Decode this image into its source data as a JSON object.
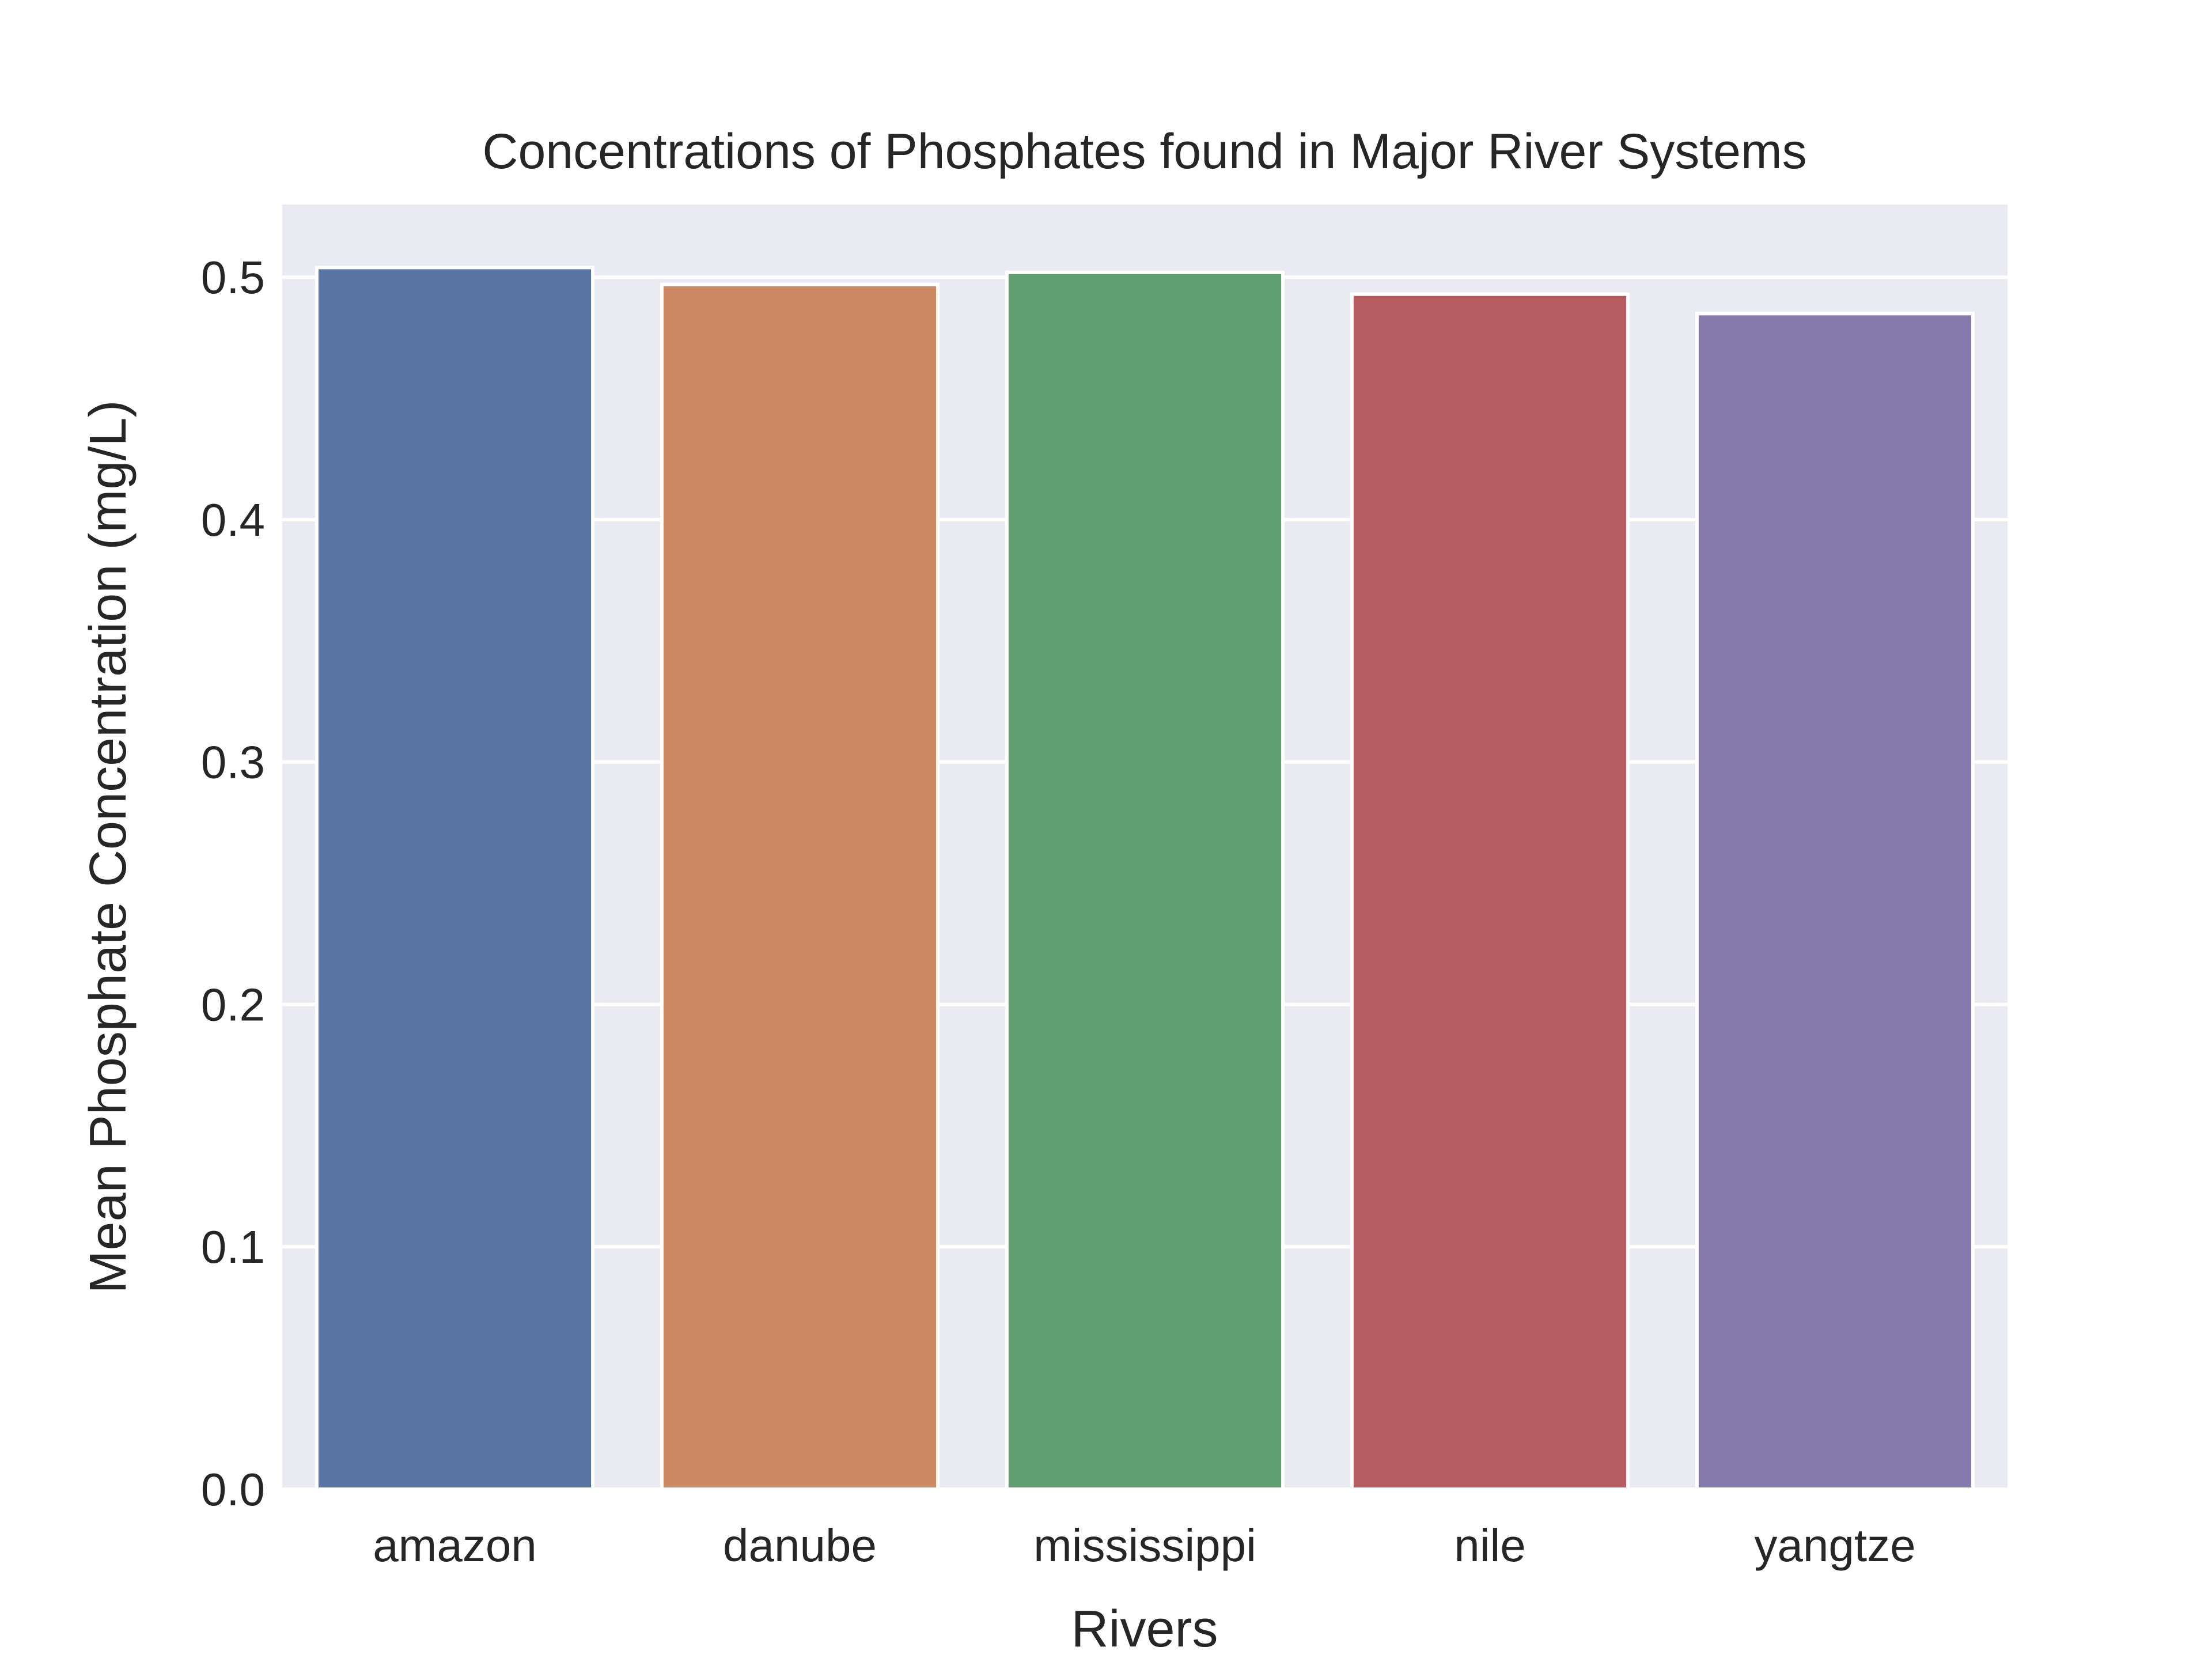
{
  "chart_data": {
    "type": "bar",
    "title": "Concentrations of Phosphates found in Major River Systems",
    "xlabel": "Rivers",
    "ylabel": "Mean Phosphate Concentration (mg/L)",
    "categories": [
      "amazon",
      "danube",
      "mississippi",
      "nile",
      "yangtze"
    ],
    "values": [
      0.504,
      0.497,
      0.502,
      0.493,
      0.485
    ],
    "ylim": [
      0,
      0.53
    ],
    "yticks": [
      0.0,
      0.1,
      0.2,
      0.3,
      0.4,
      0.5
    ],
    "ytick_labels": [
      "0.0",
      "0.1",
      "0.2",
      "0.3",
      "0.4",
      "0.5"
    ],
    "colors": [
      "#5975a4",
      "#cc8963",
      "#5f9e6e",
      "#b55d60",
      "#857aab"
    ],
    "background_color": "#eaeaf2",
    "grid": true,
    "legend": "none"
  }
}
